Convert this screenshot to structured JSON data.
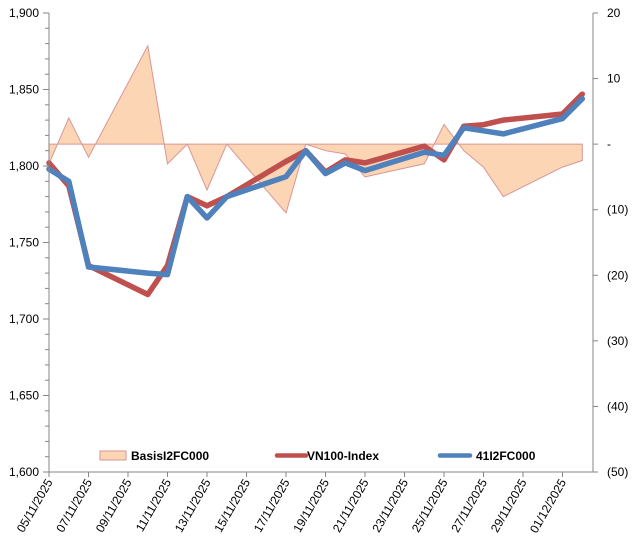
{
  "chart_data": {
    "type": "line",
    "title": "",
    "xlabel": "",
    "ylabel": "",
    "y2label": "",
    "x_axis": {
      "type": "date",
      "start": "05/11/2025",
      "end": "03/12/2025",
      "tick_labels": [
        "05/11/2025",
        "07/11/2025",
        "09/11/2025",
        "11/11/2025",
        "13/11/2025",
        "15/11/2025",
        "17/11/2025",
        "19/11/2025",
        "21/11/2025",
        "23/11/2025",
        "25/11/2025",
        "27/11/2025",
        "29/11/2025",
        "01/12/2025"
      ]
    },
    "y_axis_left": {
      "ylim": [
        1600,
        1900
      ],
      "ticks": [
        1600,
        1650,
        1700,
        1750,
        1800,
        1850,
        1900
      ],
      "tick_labels": [
        "1,600",
        "1,650",
        "1,700",
        "1,750",
        "1,800",
        "1,850",
        "1,900"
      ]
    },
    "y_axis_right": {
      "ylim": [
        -50,
        20
      ],
      "ticks": [
        -50,
        -40,
        -30,
        -20,
        -10,
        0,
        10,
        20
      ],
      "tick_labels": [
        "(50)",
        "(40)",
        "(30)",
        "(20)",
        "(10)",
        "-",
        "10",
        "20"
      ]
    },
    "grid": false,
    "legend": {
      "position": "bottom-inside"
    },
    "x": [
      "05/11/2025",
      "06/11/2025",
      "07/11/2025",
      "10/11/2025",
      "11/11/2025",
      "12/11/2025",
      "13/11/2025",
      "14/11/2025",
      "17/11/2025",
      "18/11/2025",
      "19/11/2025",
      "20/11/2025",
      "21/11/2025",
      "24/11/2025",
      "25/11/2025",
      "26/11/2025",
      "27/11/2025",
      "28/11/2025",
      "01/12/2025",
      "02/12/2025"
    ],
    "series": [
      {
        "name": "BasisI2FC000",
        "type": "area",
        "axis": "right",
        "color": "#FCD5B5",
        "edge_color": "#D99694",
        "values": [
          -3,
          4,
          -2,
          15,
          -3,
          0,
          -7,
          0,
          -10.5,
          0,
          -1,
          -1.5,
          -5,
          -3,
          3,
          -1,
          -3.5,
          -8,
          -3.5,
          -2.5
        ]
      },
      {
        "name": "VN100-Index",
        "type": "line",
        "axis": "left",
        "color": "#C0504D",
        "values": [
          1802,
          1787,
          1735,
          1716,
          1735,
          1780,
          1774,
          1780,
          1803,
          1810,
          1796,
          1804,
          1802,
          1813,
          1804,
          1826,
          1827,
          1830,
          1834,
          1847
        ]
      },
      {
        "name": "41I2FC000",
        "type": "line",
        "axis": "left",
        "color": "#4F81BD",
        "values": [
          1798,
          1790,
          1734,
          1730,
          1729,
          1780,
          1766,
          1780,
          1793,
          1810,
          1795,
          1802,
          1797,
          1809,
          1807,
          1825,
          1823,
          1821,
          1831,
          1844
        ]
      }
    ]
  }
}
